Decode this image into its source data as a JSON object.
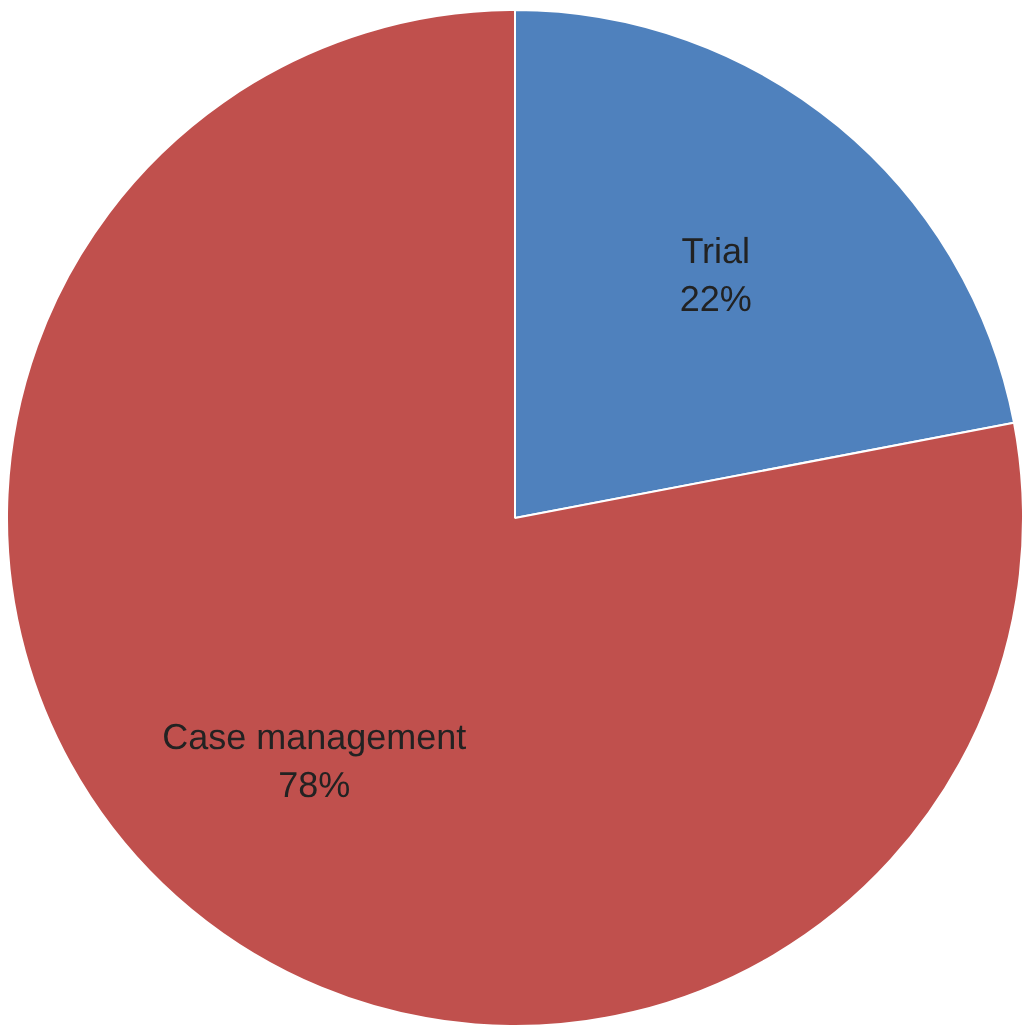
{
  "chart_data": {
    "type": "pie",
    "categories": [
      "Trial",
      "Case management"
    ],
    "values": [
      22,
      78
    ],
    "colors": [
      "#4f81bd",
      "#c0504d"
    ],
    "value_labels": [
      "22%",
      "78%"
    ],
    "legend": false
  }
}
